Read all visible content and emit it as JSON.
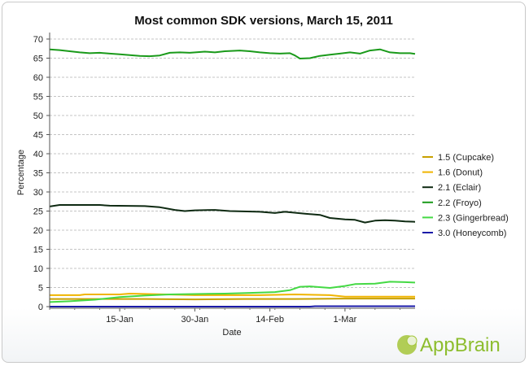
{
  "chart_data": {
    "type": "line",
    "title": "Most common SDK versions, March 15, 2011",
    "xlabel": "Date",
    "ylabel": "Percentage",
    "ylim": [
      0,
      70
    ],
    "yticks": [
      0,
      5,
      10,
      15,
      20,
      25,
      30,
      35,
      40,
      45,
      50,
      55,
      60,
      65,
      70
    ],
    "xlim": [
      "2011-01-01",
      "2011-03-15"
    ],
    "xticks": [
      {
        "date": "2011-01-15",
        "label": "15-Jan"
      },
      {
        "date": "2011-01-30",
        "label": "30-Jan"
      },
      {
        "date": "2011-02-14",
        "label": "14-Feb"
      },
      {
        "date": "2011-03-01",
        "label": "1-Mar"
      }
    ],
    "grid": "horizontal, dashed",
    "legend_position": "right",
    "series": [
      {
        "name": "1.5 (Cupcake)",
        "color": "#c8a000",
        "points": [
          [
            "2011-01-01",
            2.0
          ],
          [
            "2011-01-10",
            2.0
          ],
          [
            "2011-01-20",
            2.0
          ],
          [
            "2011-01-30",
            1.9
          ],
          [
            "2011-02-09",
            2.0
          ],
          [
            "2011-02-19",
            2.0
          ],
          [
            "2011-03-01",
            2.1
          ],
          [
            "2011-03-15",
            2.1
          ]
        ]
      },
      {
        "name": "1.6 (Donut)",
        "color": "#f0b400",
        "points": [
          [
            "2011-01-01",
            3.0
          ],
          [
            "2011-01-07",
            3.0
          ],
          [
            "2011-01-08",
            3.2
          ],
          [
            "2011-01-15",
            3.2
          ],
          [
            "2011-01-17",
            3.4
          ],
          [
            "2011-01-24",
            3.2
          ],
          [
            "2011-01-30",
            3.0
          ],
          [
            "2011-02-05",
            3.0
          ],
          [
            "2011-02-12",
            3.0
          ],
          [
            "2011-02-19",
            3.2
          ],
          [
            "2011-02-26",
            3.0
          ],
          [
            "2011-03-01",
            2.6
          ],
          [
            "2011-03-08",
            2.6
          ],
          [
            "2011-03-15",
            2.6
          ]
        ]
      },
      {
        "name": "2.1 (Eclair)",
        "color": "#0e2a12",
        "points": [
          [
            "2011-01-01",
            26.2
          ],
          [
            "2011-01-03",
            26.6
          ],
          [
            "2011-01-11",
            26.6
          ],
          [
            "2011-01-13",
            26.4
          ],
          [
            "2011-01-20",
            26.3
          ],
          [
            "2011-01-23",
            26.0
          ],
          [
            "2011-01-26",
            25.3
          ],
          [
            "2011-01-28",
            25.0
          ],
          [
            "2011-01-30",
            25.2
          ],
          [
            "2011-02-03",
            25.3
          ],
          [
            "2011-02-06",
            25.0
          ],
          [
            "2011-02-12",
            24.8
          ],
          [
            "2011-02-15",
            24.5
          ],
          [
            "2011-02-17",
            24.8
          ],
          [
            "2011-02-21",
            24.3
          ],
          [
            "2011-02-24",
            24.0
          ],
          [
            "2011-02-26",
            23.2
          ],
          [
            "2011-03-01",
            22.8
          ],
          [
            "2011-03-03",
            22.7
          ],
          [
            "2011-03-05",
            22.0
          ],
          [
            "2011-03-07",
            22.5
          ],
          [
            "2011-03-09",
            22.6
          ],
          [
            "2011-03-11",
            22.5
          ],
          [
            "2011-03-13",
            22.3
          ],
          [
            "2011-03-15",
            22.2
          ]
        ]
      },
      {
        "name": "2.2 (Froyo)",
        "color": "#1a9a1a",
        "points": [
          [
            "2011-01-01",
            67.3
          ],
          [
            "2011-01-03",
            67.1
          ],
          [
            "2011-01-05",
            66.8
          ],
          [
            "2011-01-07",
            66.5
          ],
          [
            "2011-01-09",
            66.3
          ],
          [
            "2011-01-11",
            66.4
          ],
          [
            "2011-01-13",
            66.2
          ],
          [
            "2011-01-15",
            66.0
          ],
          [
            "2011-01-17",
            65.8
          ],
          [
            "2011-01-19",
            65.6
          ],
          [
            "2011-01-21",
            65.5
          ],
          [
            "2011-01-23",
            65.7
          ],
          [
            "2011-01-25",
            66.4
          ],
          [
            "2011-01-27",
            66.5
          ],
          [
            "2011-01-29",
            66.4
          ],
          [
            "2011-02-01",
            66.7
          ],
          [
            "2011-02-03",
            66.5
          ],
          [
            "2011-02-05",
            66.8
          ],
          [
            "2011-02-08",
            67.0
          ],
          [
            "2011-02-10",
            66.8
          ],
          [
            "2011-02-12",
            66.5
          ],
          [
            "2011-02-14",
            66.3
          ],
          [
            "2011-02-16",
            66.2
          ],
          [
            "2011-02-18",
            66.3
          ],
          [
            "2011-02-19",
            65.7
          ],
          [
            "2011-02-20",
            64.9
          ],
          [
            "2011-02-22",
            65.0
          ],
          [
            "2011-02-24",
            65.6
          ],
          [
            "2011-02-26",
            65.9
          ],
          [
            "2011-02-28",
            66.2
          ],
          [
            "2011-03-02",
            66.5
          ],
          [
            "2011-03-04",
            66.2
          ],
          [
            "2011-03-06",
            67.0
          ],
          [
            "2011-03-08",
            67.3
          ],
          [
            "2011-03-10",
            66.5
          ],
          [
            "2011-03-12",
            66.3
          ],
          [
            "2011-03-14",
            66.3
          ],
          [
            "2011-03-15",
            66.1
          ]
        ]
      },
      {
        "name": "2.3 (Gingerbread)",
        "color": "#44d944",
        "points": [
          [
            "2011-01-01",
            1.2
          ],
          [
            "2011-01-05",
            1.4
          ],
          [
            "2011-01-10",
            1.8
          ],
          [
            "2011-01-15",
            2.5
          ],
          [
            "2011-01-20",
            2.9
          ],
          [
            "2011-01-25",
            3.2
          ],
          [
            "2011-01-30",
            3.3
          ],
          [
            "2011-02-05",
            3.4
          ],
          [
            "2011-02-10",
            3.6
          ],
          [
            "2011-02-15",
            3.8
          ],
          [
            "2011-02-18",
            4.3
          ],
          [
            "2011-02-20",
            5.2
          ],
          [
            "2011-02-22",
            5.3
          ],
          [
            "2011-02-26",
            4.9
          ],
          [
            "2011-03-01",
            5.4
          ],
          [
            "2011-03-03",
            5.9
          ],
          [
            "2011-03-07",
            6.0
          ],
          [
            "2011-03-10",
            6.5
          ],
          [
            "2011-03-13",
            6.4
          ],
          [
            "2011-03-15",
            6.3
          ]
        ]
      },
      {
        "name": "3.0 (Honeycomb)",
        "color": "#1a1aa8",
        "points": [
          [
            "2011-01-01",
            0.0
          ],
          [
            "2011-02-22",
            0.0
          ],
          [
            "2011-02-23",
            0.1
          ],
          [
            "2011-03-15",
            0.1
          ]
        ]
      }
    ]
  },
  "brand": {
    "name": "AppBrain"
  }
}
